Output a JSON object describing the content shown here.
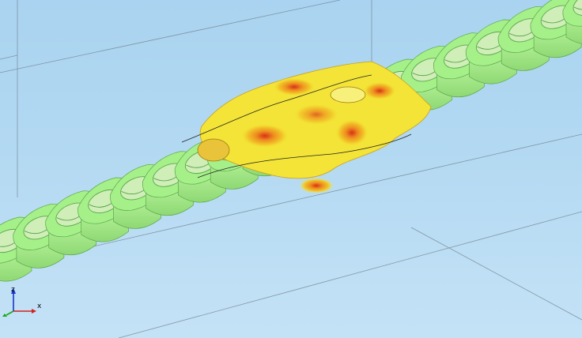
{
  "viewport": {
    "background_top": "#a9d3f0",
    "background_bottom": "#c4e2f6"
  },
  "model": {
    "base_color": "#a6f08a",
    "edge_color": "#5aa84a",
    "hole_color": "#cfeeb8",
    "deformation_colors": [
      "#f5ef3c",
      "#f2c629",
      "#ee8d1f",
      "#d8301a"
    ],
    "cell_count": 20
  },
  "triad": {
    "x_label": "x",
    "z_label": "z",
    "x_color": "#d42020",
    "y_color": "#18a818",
    "z_color": "#1836c8"
  }
}
